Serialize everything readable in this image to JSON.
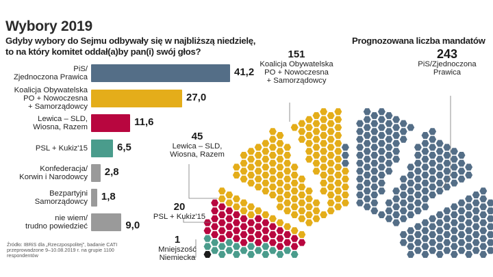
{
  "title": "Wybory 2019",
  "question": "Gdyby wybory do Sejmu odbywały się w najbliższą niedzielę,\nto na który komitet oddał(a)by pan(i) swój głos?",
  "seats_title": "Prognozowana liczba mandatów",
  "source": "Źródło: IBRiS dla „Rzeczpospolitej”, badanie CATI przeprowadzone 9–10.08.2019 r. na grupie 1100 respondentów",
  "chart_data": [
    {
      "type": "bar",
      "orientation": "horizontal",
      "title": "Gdyby wybory do Sejmu odbywały się w najbliższą niedzielę, to na który komitet oddał(a)by pan(i) swój głos?",
      "unit": "%",
      "categories": [
        "PiS/\nZjednoczona Prawica",
        "Koalicja Obywatelska\nPO + Nowoczesna\n+ Samorządowcy",
        "Lewica – SLD,\nWiosna, Razem",
        "PSL + Kukiz'15",
        "Konfederacja/\nKorwin i Narodowcy",
        "Bezpartyjni\nSamorządowcy",
        "nie wiem/\ntrudno powiedzieć"
      ],
      "values": [
        41.2,
        27.0,
        11.6,
        6.5,
        2.8,
        1.8,
        9.0
      ],
      "value_labels": [
        "41,2",
        "27,0",
        "11,6",
        "6,5",
        "2,8",
        "1,8",
        "9,0"
      ],
      "colors": [
        "#546e87",
        "#e4ad1a",
        "#b8063f",
        "#4a9c8c",
        "#9a9a9a",
        "#9a9a9a",
        "#9a9a9a"
      ],
      "xlim": [
        0,
        45
      ],
      "grid": false
    },
    {
      "type": "hemicycle",
      "title": "Prognozowana liczba mandatów",
      "total_seats": 460,
      "parties": [
        {
          "name": "Mniejszość\nNiemiecka",
          "seats": 1,
          "color": "#1c1c1c"
        },
        {
          "name": "PSL + Kukiz'15",
          "seats": 20,
          "color": "#4a9c8c"
        },
        {
          "name": "Lewica – SLD,\nWiosna, Razem",
          "seats": 45,
          "color": "#b8063f"
        },
        {
          "name": "Koalicja Obywatelska\nPO + Nowoczesna\n+ Samorządowcy",
          "seats": 151,
          "color": "#e4ad1a"
        },
        {
          "name": "PiS/Zjednoczona\nPrawica",
          "seats": 243,
          "color": "#546e87"
        }
      ]
    }
  ]
}
